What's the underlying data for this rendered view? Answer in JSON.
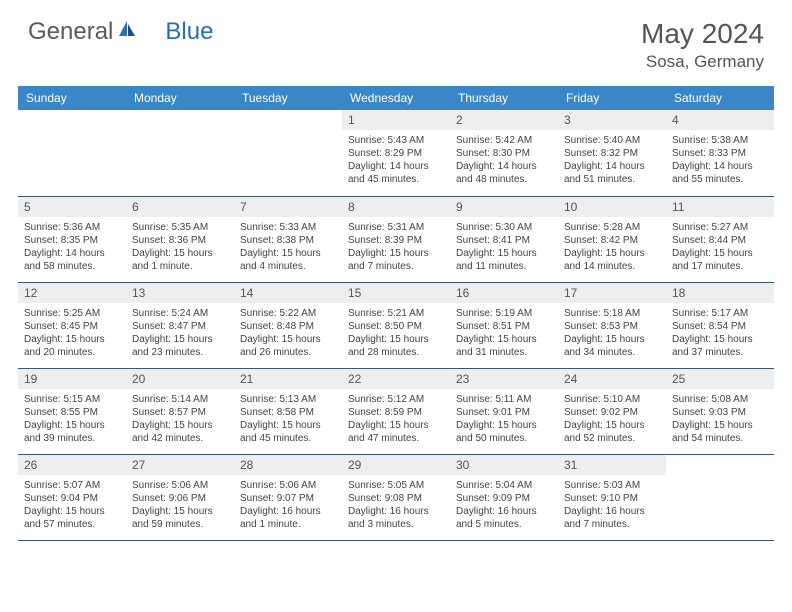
{
  "logo": {
    "word1": "General",
    "word2": "Blue"
  },
  "title": "May 2024",
  "location": "Sosa, Germany",
  "colors": {
    "header_bg": "#3b86c6",
    "row_border": "#34577a",
    "daynum_bg": "#eceef0",
    "text": "#444444",
    "logo_gray": "#5a5a5a",
    "logo_blue": "#2a6fb5"
  },
  "weekdays": [
    "Sunday",
    "Monday",
    "Tuesday",
    "Wednesday",
    "Thursday",
    "Friday",
    "Saturday"
  ],
  "weeks": [
    [
      {
        "empty": true
      },
      {
        "empty": true
      },
      {
        "empty": true
      },
      {
        "num": "1",
        "sunrise": "5:43 AM",
        "sunset": "8:29 PM",
        "daylight": "14 hours and 45 minutes."
      },
      {
        "num": "2",
        "sunrise": "5:42 AM",
        "sunset": "8:30 PM",
        "daylight": "14 hours and 48 minutes."
      },
      {
        "num": "3",
        "sunrise": "5:40 AM",
        "sunset": "8:32 PM",
        "daylight": "14 hours and 51 minutes."
      },
      {
        "num": "4",
        "sunrise": "5:38 AM",
        "sunset": "8:33 PM",
        "daylight": "14 hours and 55 minutes."
      }
    ],
    [
      {
        "num": "5",
        "sunrise": "5:36 AM",
        "sunset": "8:35 PM",
        "daylight": "14 hours and 58 minutes."
      },
      {
        "num": "6",
        "sunrise": "5:35 AM",
        "sunset": "8:36 PM",
        "daylight": "15 hours and 1 minute."
      },
      {
        "num": "7",
        "sunrise": "5:33 AM",
        "sunset": "8:38 PM",
        "daylight": "15 hours and 4 minutes."
      },
      {
        "num": "8",
        "sunrise": "5:31 AM",
        "sunset": "8:39 PM",
        "daylight": "15 hours and 7 minutes."
      },
      {
        "num": "9",
        "sunrise": "5:30 AM",
        "sunset": "8:41 PM",
        "daylight": "15 hours and 11 minutes."
      },
      {
        "num": "10",
        "sunrise": "5:28 AM",
        "sunset": "8:42 PM",
        "daylight": "15 hours and 14 minutes."
      },
      {
        "num": "11",
        "sunrise": "5:27 AM",
        "sunset": "8:44 PM",
        "daylight": "15 hours and 17 minutes."
      }
    ],
    [
      {
        "num": "12",
        "sunrise": "5:25 AM",
        "sunset": "8:45 PM",
        "daylight": "15 hours and 20 minutes."
      },
      {
        "num": "13",
        "sunrise": "5:24 AM",
        "sunset": "8:47 PM",
        "daylight": "15 hours and 23 minutes."
      },
      {
        "num": "14",
        "sunrise": "5:22 AM",
        "sunset": "8:48 PM",
        "daylight": "15 hours and 26 minutes."
      },
      {
        "num": "15",
        "sunrise": "5:21 AM",
        "sunset": "8:50 PM",
        "daylight": "15 hours and 28 minutes."
      },
      {
        "num": "16",
        "sunrise": "5:19 AM",
        "sunset": "8:51 PM",
        "daylight": "15 hours and 31 minutes."
      },
      {
        "num": "17",
        "sunrise": "5:18 AM",
        "sunset": "8:53 PM",
        "daylight": "15 hours and 34 minutes."
      },
      {
        "num": "18",
        "sunrise": "5:17 AM",
        "sunset": "8:54 PM",
        "daylight": "15 hours and 37 minutes."
      }
    ],
    [
      {
        "num": "19",
        "sunrise": "5:15 AM",
        "sunset": "8:55 PM",
        "daylight": "15 hours and 39 minutes."
      },
      {
        "num": "20",
        "sunrise": "5:14 AM",
        "sunset": "8:57 PM",
        "daylight": "15 hours and 42 minutes."
      },
      {
        "num": "21",
        "sunrise": "5:13 AM",
        "sunset": "8:58 PM",
        "daylight": "15 hours and 45 minutes."
      },
      {
        "num": "22",
        "sunrise": "5:12 AM",
        "sunset": "8:59 PM",
        "daylight": "15 hours and 47 minutes."
      },
      {
        "num": "23",
        "sunrise": "5:11 AM",
        "sunset": "9:01 PM",
        "daylight": "15 hours and 50 minutes."
      },
      {
        "num": "24",
        "sunrise": "5:10 AM",
        "sunset": "9:02 PM",
        "daylight": "15 hours and 52 minutes."
      },
      {
        "num": "25",
        "sunrise": "5:08 AM",
        "sunset": "9:03 PM",
        "daylight": "15 hours and 54 minutes."
      }
    ],
    [
      {
        "num": "26",
        "sunrise": "5:07 AM",
        "sunset": "9:04 PM",
        "daylight": "15 hours and 57 minutes."
      },
      {
        "num": "27",
        "sunrise": "5:06 AM",
        "sunset": "9:06 PM",
        "daylight": "15 hours and 59 minutes."
      },
      {
        "num": "28",
        "sunrise": "5:06 AM",
        "sunset": "9:07 PM",
        "daylight": "16 hours and 1 minute."
      },
      {
        "num": "29",
        "sunrise": "5:05 AM",
        "sunset": "9:08 PM",
        "daylight": "16 hours and 3 minutes."
      },
      {
        "num": "30",
        "sunrise": "5:04 AM",
        "sunset": "9:09 PM",
        "daylight": "16 hours and 5 minutes."
      },
      {
        "num": "31",
        "sunrise": "5:03 AM",
        "sunset": "9:10 PM",
        "daylight": "16 hours and 7 minutes."
      },
      {
        "empty": true
      }
    ]
  ]
}
